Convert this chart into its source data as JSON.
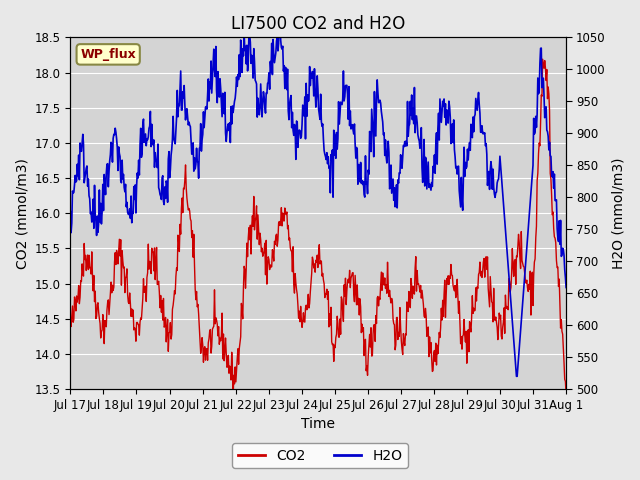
{
  "title": "LI7500 CO2 and H2O",
  "xlabel": "Time",
  "ylabel_left": "CO2 (mmol/m3)",
  "ylabel_right": "H2O (mmol/m3)",
  "ylim_left": [
    13.5,
    18.5
  ],
  "ylim_right": [
    500,
    1050
  ],
  "co2_color": "#cc0000",
  "h2o_color": "#0000cc",
  "bg_color": "#e8e8e8",
  "plot_bg": "#d4d4d4",
  "annotation_text": "WP_flux",
  "annotation_bg": "#ffffcc",
  "annotation_border": "#888844",
  "legend_co2": "CO2",
  "legend_h2o": "H2O",
  "x_tick_labels": [
    "Jul 17",
    "Jul 18",
    "Jul 19",
    "Jul 20",
    "Jul 21",
    "Jul 22",
    "Jul 23",
    "Jul 24",
    "Jul 25",
    "Jul 26",
    "Jul 27",
    "Jul 28",
    "Jul 29",
    "Jul 30",
    "Jul 31",
    "Aug 1"
  ],
  "yticks_left": [
    13.5,
    14.0,
    14.5,
    15.0,
    15.5,
    16.0,
    16.5,
    17.0,
    17.5,
    18.0,
    18.5
  ],
  "yticks_right": [
    500,
    550,
    600,
    650,
    700,
    750,
    800,
    850,
    900,
    950,
    1000,
    1050
  ],
  "title_fontsize": 12,
  "label_fontsize": 10,
  "tick_fontsize": 8.5
}
